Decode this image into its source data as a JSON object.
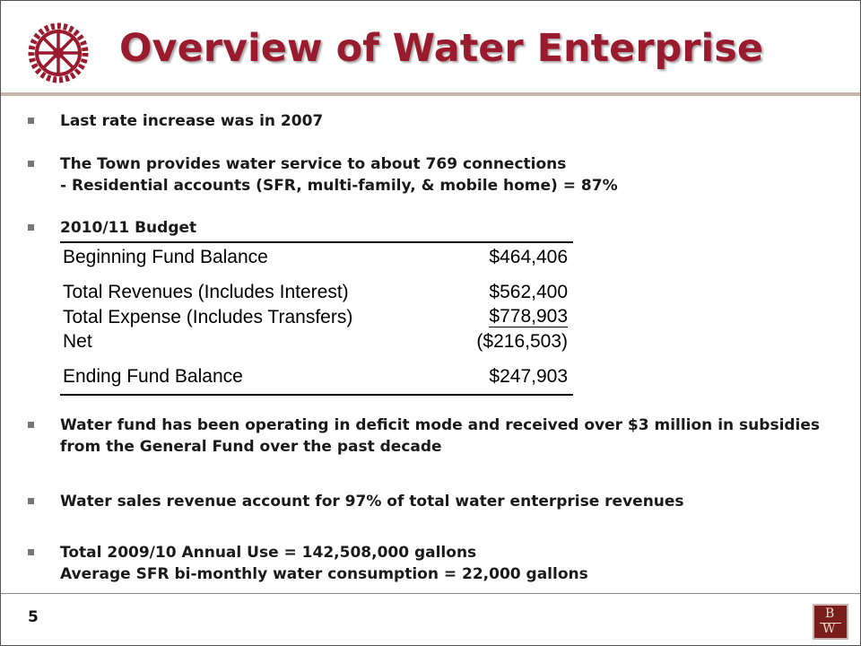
{
  "slide": {
    "title": "Overview of Water Enterprise",
    "page_number": "5",
    "logo_icon": "gear-wheel-icon",
    "footer_logo": {
      "top": "B",
      "bottom": "W"
    },
    "colors": {
      "title": "#9b1b2e",
      "rule": "#c9b5ad",
      "footer_logo_bg": "#7a1d1d"
    }
  },
  "bullets": [
    {
      "lines": [
        "Last rate increase was in 2007"
      ]
    },
    {
      "lines": [
        "The Town provides water service to about 769 connections",
        "- Residential accounts (SFR, multi-family, & mobile home) = 87%"
      ]
    },
    {
      "lines": [
        "2010/11 Budget"
      ]
    },
    {
      "lines": [
        "Water fund has been operating in deficit mode and received over $3 million in subsidies",
        "from the General Fund over the past decade"
      ]
    },
    {
      "lines": [
        "Water sales revenue account for 97% of total water enterprise revenues"
      ]
    },
    {
      "lines": [
        "Total 2009/10 Annual Use = 142,508,000  gallons",
        "Average SFR bi-monthly water consumption = 22,000 gallons"
      ]
    }
  ],
  "budget": [
    {
      "label": "Beginning Fund Balance",
      "amount": "$464,406"
    },
    {
      "label": "Total Revenues (Includes Interest)",
      "amount": "$562,400"
    },
    {
      "label": "Total Expense (Includes Transfers)",
      "amount": "$778,903"
    },
    {
      "label": "Net",
      "amount": "($216,503)"
    },
    {
      "label": "Ending Fund Balance",
      "amount": "$247,903"
    }
  ]
}
